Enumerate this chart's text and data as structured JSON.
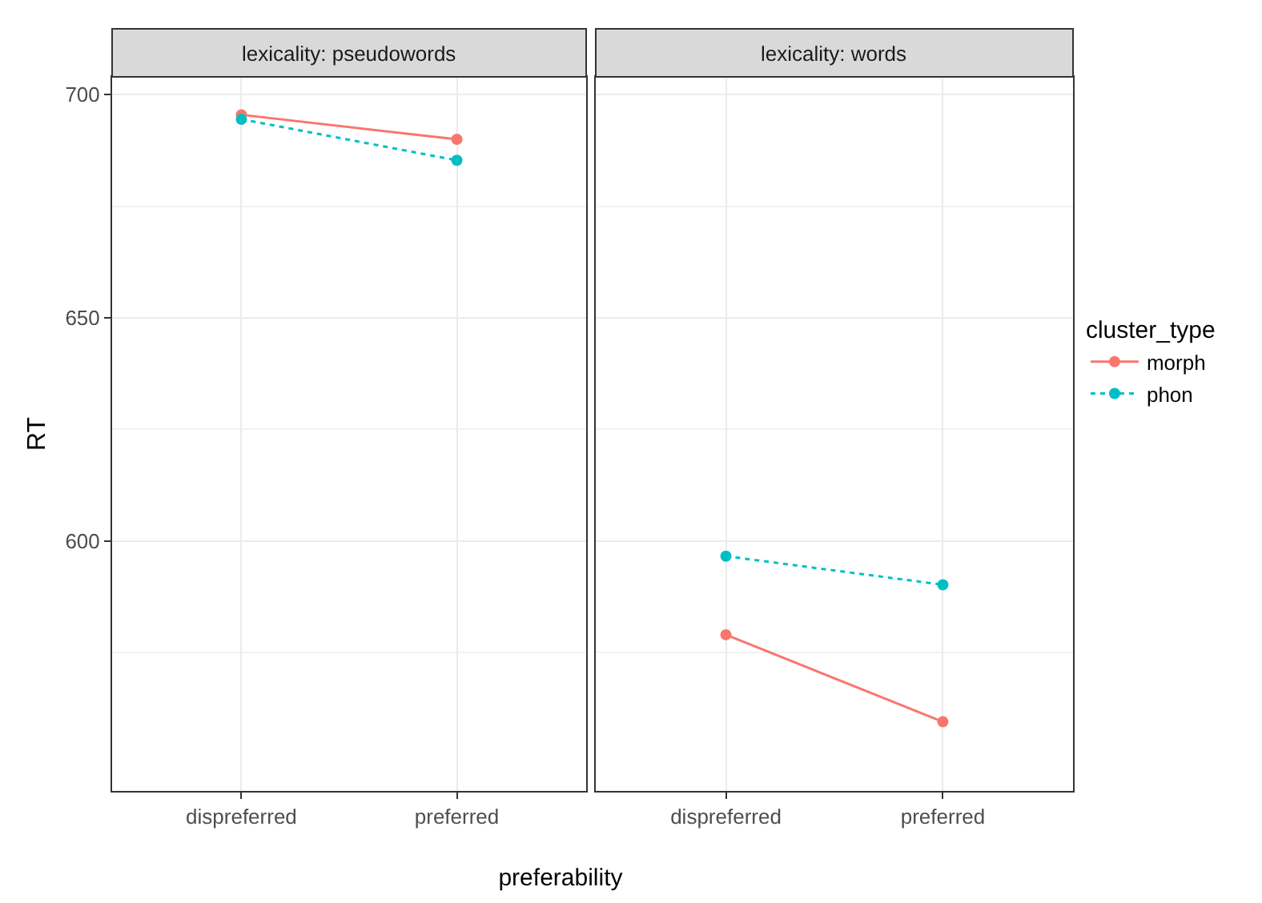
{
  "chart_data": [
    {
      "type": "line",
      "title": "lexicality: pseudowords",
      "xlabel": "preferability",
      "ylabel": "RT",
      "categories": [
        "dispreferred",
        "preferred"
      ],
      "series": [
        {
          "color": "#f8766d",
          "values": [
            695.5,
            690
          ],
          "line_style": "solid"
        },
        {
          "color": "#00bfc4",
          "values": [
            694.5,
            685.3
          ],
          "line_style": "dotted"
        }
      ],
      "ylim": [
        544,
        704
      ],
      "yticks": [
        600,
        650,
        700
      ],
      "grid": true,
      "marker": "circle"
    },
    {
      "type": "line",
      "title": "lexicality: words",
      "legend_title": "cluster_type",
      "categories": [
        "dispreferred",
        "preferred"
      ],
      "series": [
        {
          "name": "morph",
          "color": "#f8766d",
          "values": [
            579,
            559.5
          ],
          "line_style": "solid"
        },
        {
          "name": "phon",
          "color": "#00bfc4",
          "values": [
            596.6,
            590.2
          ],
          "line_style": "dotted"
        }
      ],
      "ylim": [
        544,
        704
      ],
      "yticks": [
        600,
        650,
        700
      ],
      "grid": true,
      "marker": "circle",
      "tick_labels": "x",
      "legend": "right"
    }
  ]
}
